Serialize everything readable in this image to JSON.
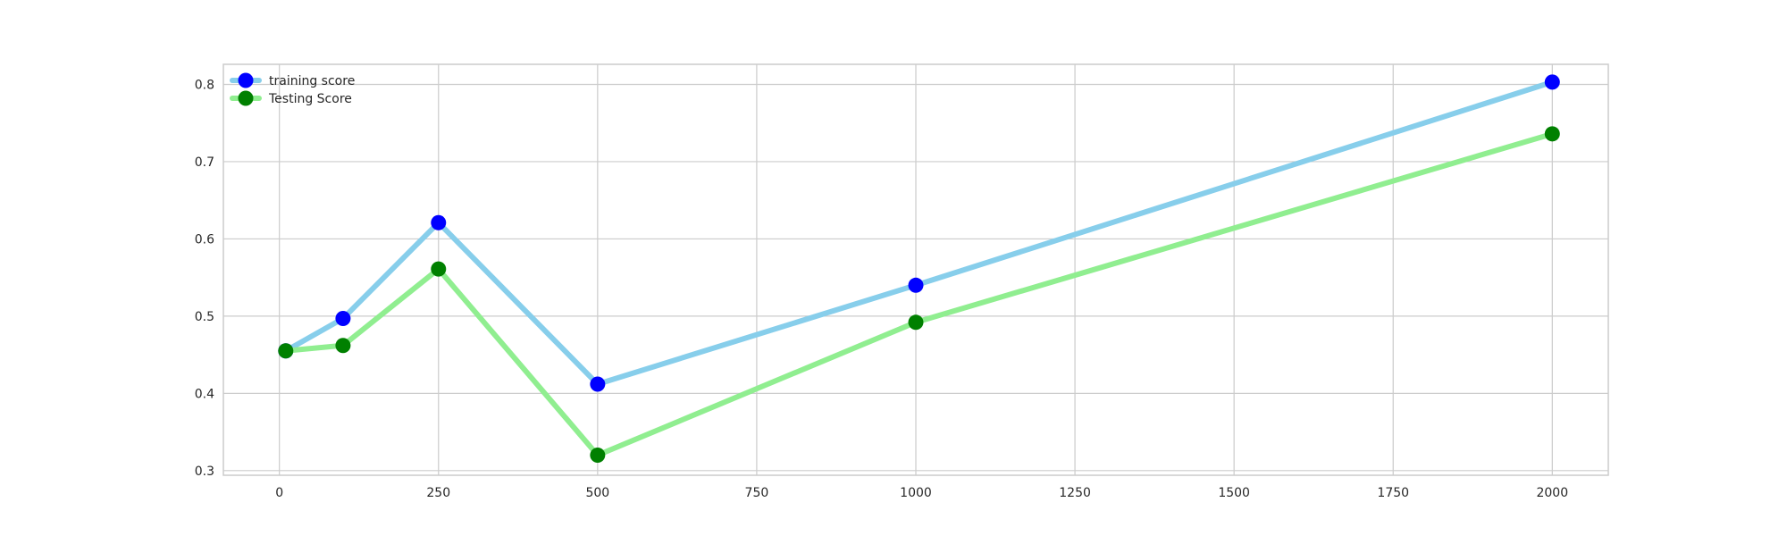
{
  "chart_data": {
    "type": "line",
    "title": "",
    "xlabel": "",
    "ylabel": "",
    "x": [
      10,
      100,
      250,
      500,
      1000,
      2000
    ],
    "series": [
      {
        "name": "training score",
        "values": [
          0.455,
          0.497,
          0.621,
          0.412,
          0.54,
          0.803
        ],
        "line_color": "#87ceeb",
        "marker_color": "#0000ff"
      },
      {
        "name": "Testing Score",
        "values": [
          0.455,
          0.462,
          0.561,
          0.32,
          0.492,
          0.736
        ],
        "line_color": "#90ee90",
        "marker_color": "#008000"
      }
    ],
    "xlim": [
      -88,
      2088
    ],
    "ylim": [
      0.294,
      0.826
    ],
    "xticks": [
      0,
      250,
      500,
      750,
      1000,
      1250,
      1500,
      1750,
      2000
    ],
    "yticks": [
      0.3,
      0.4,
      0.5,
      0.6,
      0.7,
      0.8
    ],
    "xtick_labels": [
      "0",
      "250",
      "500",
      "750",
      "1000",
      "1250",
      "1500",
      "1750",
      "2000"
    ],
    "ytick_labels": [
      "0.3",
      "0.4",
      "0.5",
      "0.6",
      "0.7",
      "0.8"
    ],
    "grid": true,
    "legend_position": "upper-left"
  }
}
